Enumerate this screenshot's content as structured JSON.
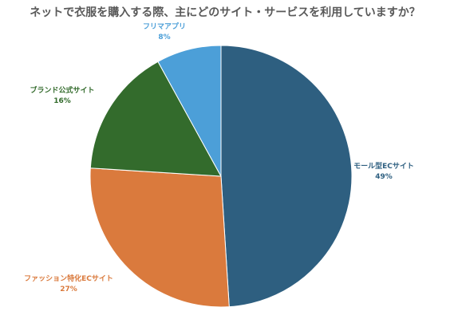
{
  "chart_data": {
    "type": "pie",
    "title": "ネットで衣服を購入する際、主にどのサイト・サービスを利用していますか？",
    "slices": [
      {
        "label": "モール型ECサイト",
        "value": 49,
        "display": "49%",
        "color": "#2E5F80"
      },
      {
        "label": "ファッション特化ECサイト",
        "value": 27,
        "display": "27%",
        "color": "#DA7A3D"
      },
      {
        "label": "ブランド公式サイト",
        "value": 16,
        "display": "16%",
        "color": "#336B2C"
      },
      {
        "label": "フリマアプリ",
        "value": 8,
        "display": "8%",
        "color": "#4C9FD8"
      }
    ],
    "legend": "none"
  }
}
